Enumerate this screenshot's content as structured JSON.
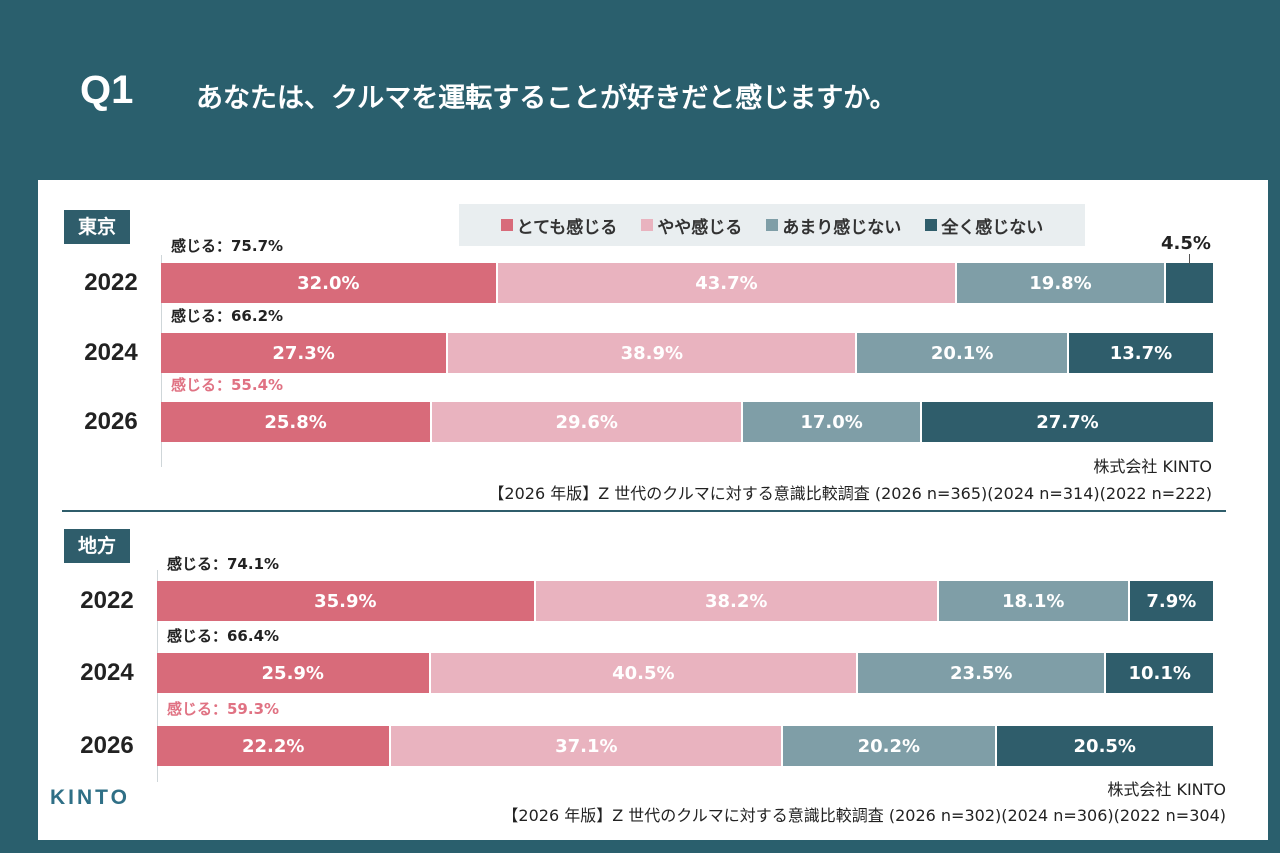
{
  "header": {
    "q_label": "Q1",
    "question": "あなたは、クルマを運転することが好きだと感じますか。"
  },
  "legend": [
    {
      "label": "とても感じる",
      "color": "#d86b7a"
    },
    {
      "label": "やや感じる",
      "color": "#e9b3bf"
    },
    {
      "label": "あまり感じない",
      "color": "#7f9ea7"
    },
    {
      "label": "全く感じない",
      "color": "#2f5d6b"
    }
  ],
  "chart_data": [
    {
      "type": "bar",
      "region": "東京",
      "categories": [
        "2022",
        "2024",
        "2026"
      ],
      "totals": [
        "感じる：75.7%",
        "感じる：66.2%",
        "感じる：55.4%"
      ],
      "series": [
        {
          "name": "とても感じる",
          "values": [
            32.0,
            27.3,
            25.8
          ]
        },
        {
          "name": "やや感じる",
          "values": [
            43.7,
            38.9,
            29.6
          ]
        },
        {
          "name": "あまり感じない",
          "values": [
            19.8,
            20.1,
            17.0
          ]
        },
        {
          "name": "全く感じない",
          "values": [
            4.5,
            13.7,
            27.7
          ]
        }
      ],
      "value_labels": [
        [
          "32.0%",
          "43.7%",
          "19.8%",
          "4.5%"
        ],
        [
          "27.3%",
          "38.9%",
          "20.1%",
          "13.7%"
        ],
        [
          "25.8%",
          "29.6%",
          "17.0%",
          "27.7%"
        ]
      ],
      "source_company": "株式会社 KINTO",
      "source_survey": "【2026 年版】Z 世代のクルマに対する意識比較調査 (2026 n=365)(2024 n=314)(2022 n=222)"
    },
    {
      "type": "bar",
      "region": "地方",
      "categories": [
        "2022",
        "2024",
        "2026"
      ],
      "totals": [
        "感じる：74.1%",
        "感じる：66.4%",
        "感じる：59.3%"
      ],
      "series": [
        {
          "name": "とても感じる",
          "values": [
            35.9,
            25.9,
            22.2
          ]
        },
        {
          "name": "やや感じる",
          "values": [
            38.2,
            40.5,
            37.1
          ]
        },
        {
          "name": "あまり感じない",
          "values": [
            18.1,
            23.5,
            20.2
          ]
        },
        {
          "name": "全く感じない",
          "values": [
            7.9,
            10.1,
            20.5
          ]
        }
      ],
      "value_labels": [
        [
          "35.9%",
          "38.2%",
          "18.1%",
          "7.9%"
        ],
        [
          "25.9%",
          "40.5%",
          "23.5%",
          "10.1%"
        ],
        [
          "22.2%",
          "37.1%",
          "20.2%",
          "20.5%"
        ]
      ],
      "source_company": "株式会社 KINTO",
      "source_survey": "【2026 年版】Z 世代のクルマに対する意識比較調査 (2026 n=302)(2024 n=306)(2022 n=304)"
    }
  ],
  "highlight_color": "#e07283",
  "logo_text": "KINTO"
}
